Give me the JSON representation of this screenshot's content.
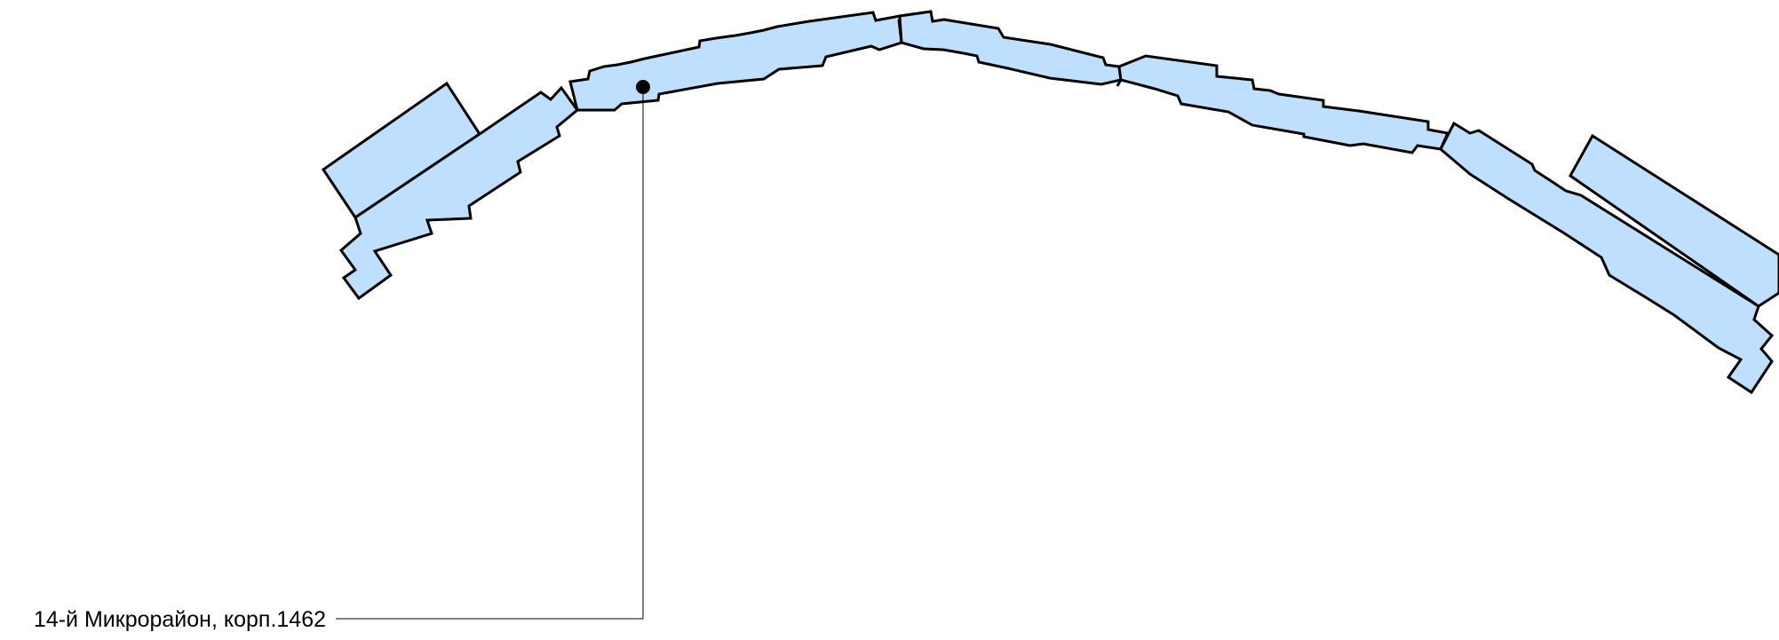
{
  "callout": {
    "label": "14-й Микрорайон, корп.1462"
  },
  "colors": {
    "building_fill": "#bfdfff",
    "outline": "#000000",
    "background": "#ffffff"
  }
}
